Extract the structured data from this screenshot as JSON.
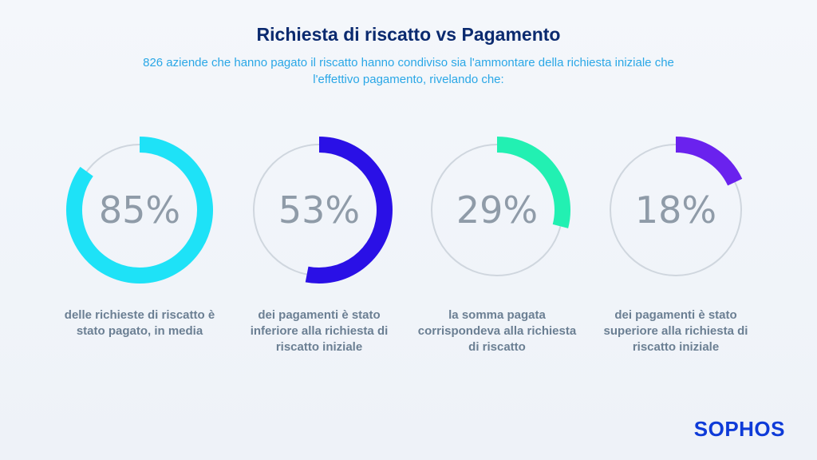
{
  "header": {
    "title": "Richiesta di riscatto vs Pagamento",
    "subtitle": "826 aziende che hanno pagato il riscatto hanno condiviso sia l'ammontare della richiesta iniziale che l'effettivo pagamento, rivelando che:"
  },
  "chart_data": [
    {
      "type": "pie",
      "value": 85,
      "label": "85%",
      "caption": "delle richieste di riscatto è stato pagato, in media",
      "color": "#1ee2f7"
    },
    {
      "type": "pie",
      "value": 53,
      "label": "53%",
      "caption": "dei pagamenti è stato inferiore alla richiesta di riscatto iniziale",
      "color": "#2a10e6"
    },
    {
      "type": "pie",
      "value": 29,
      "label": "29%",
      "caption": "la somma pagata corrispondeva alla richiesta di riscatto",
      "color": "#22f0b2"
    },
    {
      "type": "pie",
      "value": 18,
      "label": "18%",
      "caption": "dei pagamenti è stato superiore alla richiesta di riscatto iniziale",
      "color": "#6a22ee"
    }
  ],
  "track_color": "#cfd6de",
  "brand": {
    "logo": "SOPHOS"
  }
}
